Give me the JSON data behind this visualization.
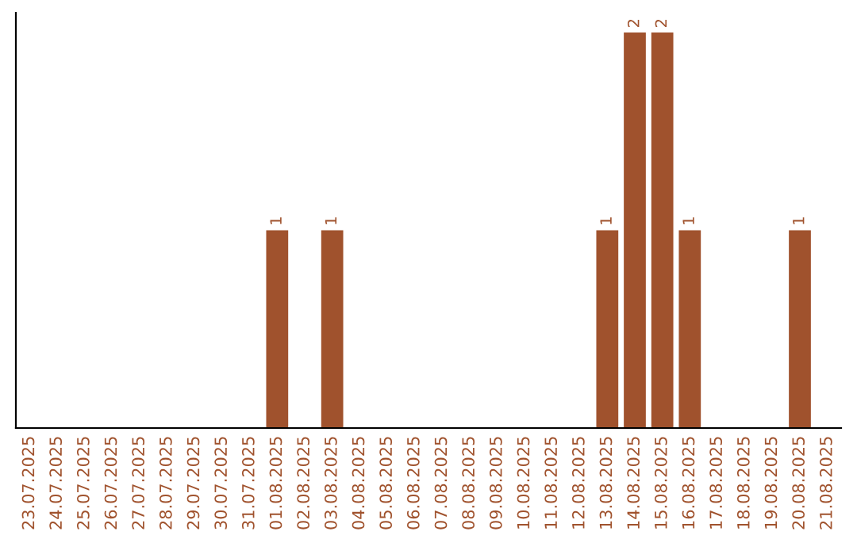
{
  "chart_data": {
    "type": "bar",
    "categories": [
      "23.07.2025",
      "24.07.2025",
      "25.07.2025",
      "26.07.2025",
      "27.07.2025",
      "28.07.2025",
      "29.07.2025",
      "30.07.2025",
      "31.07.2025",
      "01.08.2025",
      "02.08.2025",
      "03.08.2025",
      "04.08.2025",
      "05.08.2025",
      "06.08.2025",
      "07.08.2025",
      "08.08.2025",
      "09.08.2025",
      "10.08.2025",
      "11.08.2025",
      "12.08.2025",
      "13.08.2025",
      "14.08.2025",
      "15.08.2025",
      "16.08.2025",
      "17.08.2025",
      "18.08.2025",
      "19.08.2025",
      "20.08.2025",
      "21.08.2025"
    ],
    "values": [
      0,
      0,
      0,
      0,
      0,
      0,
      0,
      0,
      0,
      1,
      0,
      1,
      0,
      0,
      0,
      0,
      0,
      0,
      0,
      0,
      0,
      1,
      2,
      2,
      1,
      0,
      0,
      0,
      1,
      0
    ],
    "value_labels": [
      null,
      null,
      null,
      null,
      null,
      null,
      null,
      null,
      null,
      "1",
      null,
      "1",
      null,
      null,
      null,
      null,
      null,
      null,
      null,
      null,
      null,
      "1",
      "2",
      "2",
      "1",
      null,
      null,
      null,
      "1",
      null
    ],
    "color": "#a0522d",
    "ylim": [
      0,
      2.1
    ],
    "tick_labels": "x",
    "grid": false,
    "legend": false
  }
}
